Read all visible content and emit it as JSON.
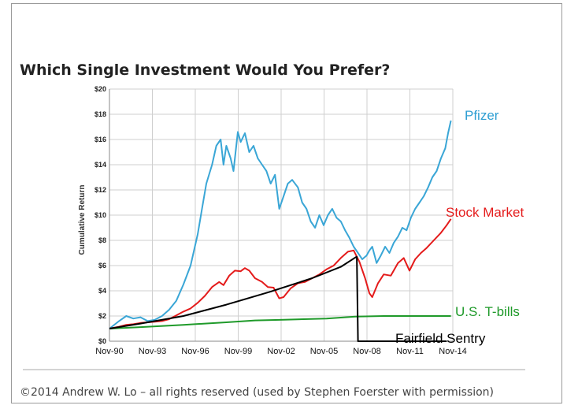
{
  "footer": {
    "copyright": "©2014 Andrew W. Lo – all rights reserved (used by Stephen Foerster with permission)"
  },
  "chart_data": {
    "type": "line",
    "title": "Which Single Investment Would You Prefer?",
    "ylabel": "Cumulative Return",
    "xlabel": "",
    "ylim": [
      0,
      20
    ],
    "xlim": [
      1990.83,
      2014.83
    ],
    "grid": true,
    "y_ticks": [
      "$0",
      "$2",
      "$4",
      "$6",
      "$8",
      "$10",
      "$12",
      "$14",
      "$16",
      "$18",
      "$20"
    ],
    "x_ticks": [
      "Nov-90",
      "Nov-93",
      "Nov-96",
      "Nov-99",
      "Nov-02",
      "Nov-05",
      "Nov-08",
      "Nov-11",
      "Nov-14"
    ],
    "series": [
      {
        "name": "Pfizer",
        "color": "#3aa6d6",
        "x": [
          1990.83,
          1991.5,
          1992.0,
          1992.5,
          1993.0,
          1993.5,
          1994.0,
          1994.5,
          1995.0,
          1995.5,
          1996.0,
          1996.5,
          1997.0,
          1997.3,
          1997.6,
          1998.0,
          1998.3,
          1998.6,
          1998.8,
          1999.0,
          1999.3,
          1999.5,
          1999.8,
          2000.0,
          2000.3,
          2000.6,
          2000.9,
          2001.2,
          2001.5,
          2001.8,
          2002.1,
          2002.4,
          2002.7,
          2003.0,
          2003.3,
          2003.6,
          2004.0,
          2004.3,
          2004.6,
          2004.9,
          2005.2,
          2005.5,
          2005.8,
          2006.1,
          2006.4,
          2006.7,
          2007.0,
          2007.3,
          2007.6,
          2007.9,
          2008.2,
          2008.5,
          2008.8,
          2009.0,
          2009.2,
          2009.5,
          2009.8,
          2010.1,
          2010.4,
          2010.7,
          2011.0,
          2011.3,
          2011.6,
          2011.9,
          2012.2,
          2012.5,
          2012.8,
          2013.1,
          2013.4,
          2013.7,
          2014.0,
          2014.3,
          2014.5,
          2014.7
        ],
        "values": [
          1.0,
          1.6,
          2.0,
          1.8,
          1.9,
          1.6,
          1.7,
          2.0,
          2.5,
          3.2,
          4.5,
          6.0,
          8.5,
          10.5,
          12.5,
          14.0,
          15.5,
          16.0,
          14.0,
          15.5,
          14.5,
          13.5,
          16.6,
          15.8,
          16.5,
          15.0,
          15.5,
          14.5,
          14.0,
          13.5,
          12.5,
          13.2,
          10.5,
          11.5,
          12.5,
          12.8,
          12.2,
          11.0,
          10.5,
          9.5,
          9.0,
          10.0,
          9.2,
          10.0,
          10.5,
          9.8,
          9.5,
          8.8,
          8.2,
          7.5,
          7.0,
          6.5,
          6.8,
          7.2,
          7.5,
          6.2,
          6.8,
          7.5,
          7.0,
          7.8,
          8.3,
          9.0,
          8.8,
          9.8,
          10.5,
          11.0,
          11.5,
          12.2,
          13.0,
          13.5,
          14.5,
          15.3,
          16.5,
          17.5
        ]
      },
      {
        "name": "Stock Market",
        "color": "#e41b1b",
        "x": [
          1990.83,
          1991.5,
          1992.0,
          1992.5,
          1993.0,
          1993.5,
          1994.0,
          1994.5,
          1995.0,
          1995.5,
          1996.0,
          1996.5,
          1997.0,
          1997.5,
          1998.0,
          1998.5,
          1998.8,
          1999.2,
          1999.6,
          2000.0,
          2000.3,
          2000.6,
          2001.0,
          2001.5,
          2001.9,
          2002.3,
          2002.7,
          2003.0,
          2003.5,
          2004.0,
          2004.5,
          2005.0,
          2005.5,
          2006.0,
          2006.5,
          2007.0,
          2007.5,
          2007.9,
          2008.3,
          2008.7,
          2009.0,
          2009.2,
          2009.6,
          2010.0,
          2010.5,
          2011.0,
          2011.4,
          2011.8,
          2012.2,
          2012.6,
          2013.0,
          2013.5,
          2014.0,
          2014.4,
          2014.7
        ],
        "values": [
          1.0,
          1.15,
          1.3,
          1.35,
          1.45,
          1.5,
          1.55,
          1.6,
          1.75,
          2.05,
          2.35,
          2.6,
          3.05,
          3.6,
          4.3,
          4.7,
          4.45,
          5.2,
          5.6,
          5.55,
          5.8,
          5.6,
          5.0,
          4.7,
          4.3,
          4.25,
          3.4,
          3.5,
          4.2,
          4.6,
          4.7,
          5.0,
          5.3,
          5.7,
          6.0,
          6.6,
          7.1,
          7.2,
          6.3,
          5.0,
          3.8,
          3.5,
          4.6,
          5.3,
          5.2,
          6.2,
          6.6,
          5.6,
          6.5,
          7.0,
          7.4,
          8.0,
          8.6,
          9.2,
          9.7
        ]
      },
      {
        "name": "U.S. T-bills",
        "color": "#1f9a2a",
        "x": [
          1990.83,
          1993.0,
          1996.0,
          1999.0,
          2001.0,
          2003.0,
          2006.0,
          2008.0,
          2010.0,
          2012.0,
          2014.7
        ],
        "values": [
          1.0,
          1.12,
          1.3,
          1.5,
          1.65,
          1.7,
          1.8,
          1.95,
          2.0,
          2.0,
          2.0
        ]
      },
      {
        "name": "Fairfield Sentry",
        "color": "#000000",
        "x": [
          1990.83,
          1993.0,
          1996.0,
          1999.0,
          2002.0,
          2005.0,
          2007.0,
          2008.1,
          2008.12,
          2008.2,
          2008.4,
          2014.4
        ],
        "values": [
          1.0,
          1.4,
          2.0,
          2.9,
          3.9,
          5.0,
          5.9,
          6.7,
          6.7,
          0.0,
          0.0,
          0.0
        ]
      }
    ]
  }
}
